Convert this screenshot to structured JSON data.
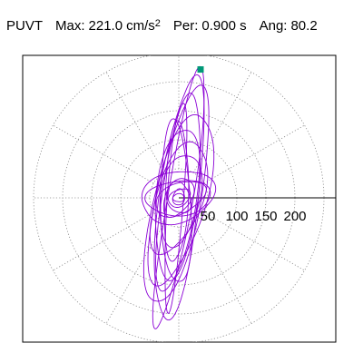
{
  "header": {
    "station": "PUVT",
    "max_label": "Max:",
    "max_value": "221.0",
    "max_unit_base": "cm/s",
    "max_unit_exp": "2",
    "per_label": "Per:",
    "per_value": "0.900 s",
    "ang_label": "Ang:",
    "ang_value": "80.2"
  },
  "chart_data": {
    "type": "polar-particle-motion",
    "title": "PUVT",
    "radial_ticks": [
      "50",
      "100",
      "150",
      "200"
    ],
    "radial_tick_values": [
      50,
      100,
      150,
      200
    ],
    "radial_max": 250,
    "angular_spokes_deg": [
      0,
      30,
      60,
      90,
      120,
      150,
      180,
      210,
      240,
      270,
      300,
      330
    ],
    "max_amplitude": 221.0,
    "max_unit": "cm/s2",
    "period_s": 0.9,
    "angle_deg": 80.2,
    "grid": "dotted",
    "trace_color": "#8b00d6",
    "marker_color": "#009977",
    "peak_point": {
      "x": 37.5,
      "y": 221.0
    },
    "loops": [
      {
        "a": 226,
        "b": 22,
        "angle_deg": 80.2,
        "dx": 2,
        "dy": 2
      },
      {
        "a": 210,
        "b": 34,
        "angle_deg": 83,
        "dx": 1,
        "dy": -4
      },
      {
        "a": 190,
        "b": 40,
        "angle_deg": 78,
        "dx": -2,
        "dy": -3
      },
      {
        "a": 170,
        "b": 30,
        "angle_deg": 82,
        "dx": 0,
        "dy": 6
      },
      {
        "a": 150,
        "b": 44,
        "angle_deg": 76,
        "dx": 3,
        "dy": 0
      },
      {
        "a": 130,
        "b": 36,
        "angle_deg": 84,
        "dx": -3,
        "dy": -6
      },
      {
        "a": 120,
        "b": 20,
        "angle_deg": 88,
        "dx": -4,
        "dy": 8
      },
      {
        "a": 100,
        "b": 40,
        "angle_deg": 72,
        "dx": 0,
        "dy": 0
      },
      {
        "a": 80,
        "b": 34,
        "angle_deg": 80,
        "dx": 2,
        "dy": -2
      },
      {
        "a": 64,
        "b": 44,
        "angle_deg": 15,
        "dx": -2,
        "dy": 2
      },
      {
        "a": 56,
        "b": 30,
        "angle_deg": 5,
        "dx": 0,
        "dy": 0
      },
      {
        "a": 46,
        "b": 26,
        "angle_deg": 25,
        "dx": 2,
        "dy": -1
      },
      {
        "a": 36,
        "b": 22,
        "angle_deg": 60,
        "dx": -1,
        "dy": 1
      },
      {
        "a": 28,
        "b": 20,
        "angle_deg": 110,
        "dx": 0,
        "dy": 0
      },
      {
        "a": 20,
        "b": 14,
        "angle_deg": 30,
        "dx": 1,
        "dy": 0
      },
      {
        "a": 14,
        "b": 10,
        "angle_deg": 80,
        "dx": 0,
        "dy": 1
      },
      {
        "a": 10,
        "b": 7,
        "angle_deg": 0,
        "dx": 0,
        "dy": 0
      },
      {
        "a": 180,
        "b": 14,
        "angle_deg": 86,
        "dx": -6,
        "dy": -10
      },
      {
        "a": 140,
        "b": 26,
        "angle_deg": 92,
        "dx": -5,
        "dy": -12
      }
    ]
  }
}
